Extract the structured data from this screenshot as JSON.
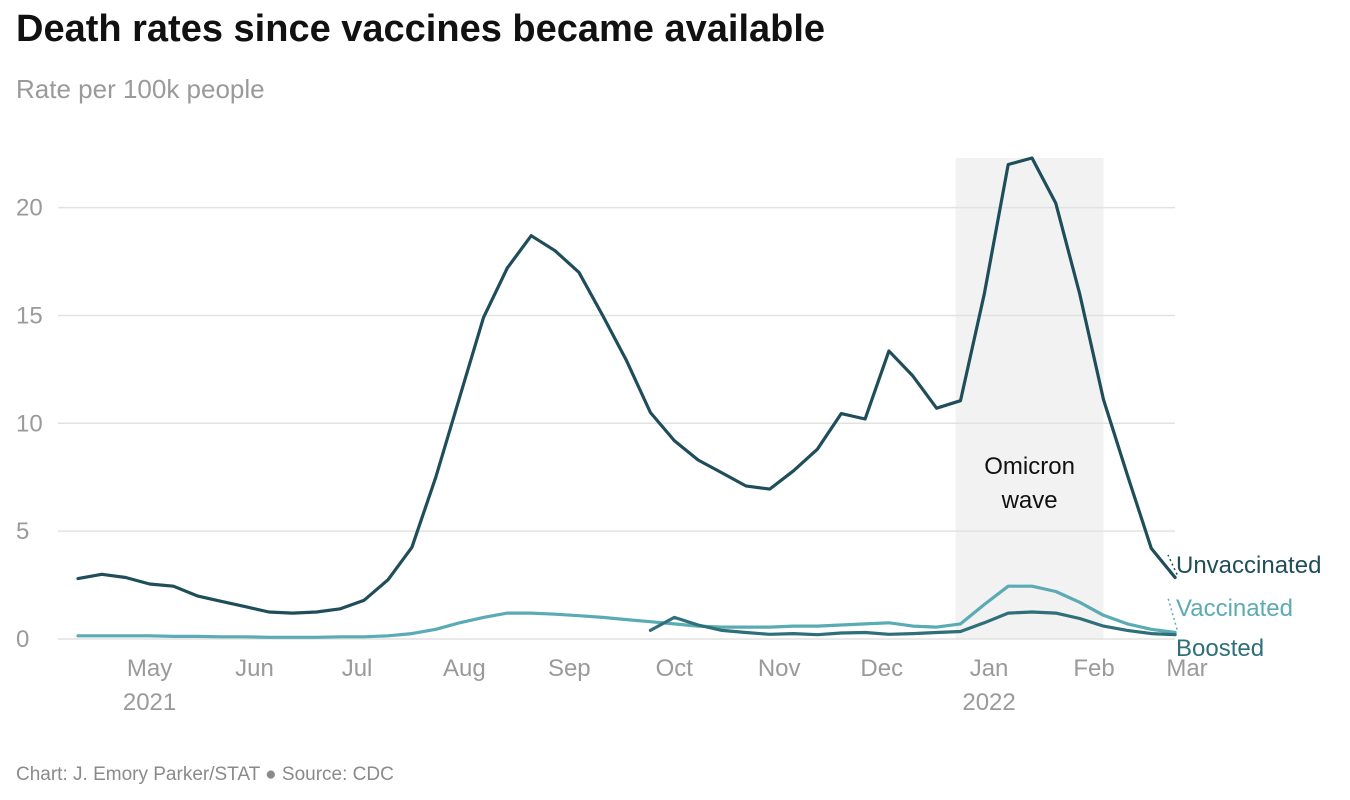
{
  "header": {
    "title": "Death rates since vaccines became available",
    "subtitle": "Rate per 100k people"
  },
  "footer": {
    "credit": "Chart: J. Emory Parker/STAT ● Source: CDC"
  },
  "colors": {
    "unvaccinated": "#1f4e5a",
    "vaccinated": "#5aabb3",
    "boosted": "#2e6f79",
    "omicron_band": "#f2f2f2",
    "grid": "#e2e2e2"
  },
  "chart_data": {
    "type": "line",
    "ylim": [
      0,
      22.3
    ],
    "yticks": [
      0,
      5,
      10,
      15,
      20
    ],
    "xticks": [
      {
        "label": "May",
        "sub": "2021",
        "week": 3
      },
      {
        "label": "Jun",
        "sub": "",
        "week": 7.4
      },
      {
        "label": "Jul",
        "sub": "",
        "week": 11.7
      },
      {
        "label": "Aug",
        "sub": "",
        "week": 16.2
      },
      {
        "label": "Sep",
        "sub": "",
        "week": 20.6
      },
      {
        "label": "Oct",
        "sub": "",
        "week": 25
      },
      {
        "label": "Nov",
        "sub": "",
        "week": 29.4
      },
      {
        "label": "Dec",
        "sub": "",
        "week": 33.7
      },
      {
        "label": "Jan",
        "sub": "2022",
        "week": 38.2
      },
      {
        "label": "Feb",
        "sub": "",
        "week": 42.6
      },
      {
        "label": "Mar",
        "sub": "",
        "week": 46.5
      }
    ],
    "shaded_region": {
      "label_line1": "Omicron",
      "label_line2": "wave",
      "x_start": 36.8,
      "x_end": 43.0
    },
    "series": [
      {
        "name": "Unvaccinated",
        "x": [
          0,
          1,
          2,
          3,
          4,
          5,
          6,
          7,
          8,
          9,
          10,
          11,
          12,
          13,
          14,
          15,
          16,
          17,
          18,
          19,
          20,
          21,
          22,
          23,
          24,
          25,
          26,
          27,
          28,
          29,
          30,
          31,
          32,
          33,
          34,
          35,
          36,
          37,
          38,
          39,
          40,
          41,
          42,
          43,
          44,
          45,
          46
        ],
        "values": [
          2.8,
          3.0,
          2.85,
          2.55,
          2.45,
          2.0,
          1.75,
          1.5,
          1.25,
          1.2,
          1.25,
          1.4,
          1.8,
          2.75,
          4.25,
          7.5,
          11.2,
          14.9,
          17.2,
          18.7,
          18.0,
          17.0,
          15.0,
          12.9,
          10.5,
          9.2,
          8.3,
          7.7,
          7.1,
          6.95,
          7.8,
          8.8,
          10.45,
          10.2,
          13.35,
          12.2,
          10.7,
          11.05,
          16.0,
          22.0,
          22.3,
          20.2,
          16.0,
          11.1,
          7.6,
          4.2,
          2.85
        ]
      },
      {
        "name": "Vaccinated",
        "x": [
          0,
          1,
          2,
          3,
          4,
          5,
          6,
          7,
          8,
          9,
          10,
          11,
          12,
          13,
          14,
          15,
          16,
          17,
          18,
          19,
          20,
          21,
          22,
          23,
          24,
          25,
          26,
          27,
          28,
          29,
          30,
          31,
          32,
          33,
          34,
          35,
          36,
          37,
          38,
          39,
          40,
          41,
          42,
          43,
          44,
          45,
          46
        ],
        "values": [
          0.15,
          0.15,
          0.15,
          0.15,
          0.12,
          0.12,
          0.1,
          0.1,
          0.08,
          0.08,
          0.08,
          0.1,
          0.1,
          0.15,
          0.25,
          0.45,
          0.75,
          1.0,
          1.2,
          1.2,
          1.15,
          1.08,
          1.0,
          0.9,
          0.8,
          0.7,
          0.6,
          0.55,
          0.55,
          0.55,
          0.6,
          0.6,
          0.65,
          0.7,
          0.75,
          0.6,
          0.55,
          0.7,
          1.6,
          2.45,
          2.45,
          2.2,
          1.7,
          1.1,
          0.7,
          0.45,
          0.3
        ]
      },
      {
        "name": "Boosted",
        "x": [
          24,
          25,
          26,
          27,
          28,
          29,
          30,
          31,
          32,
          33,
          34,
          35,
          36,
          37,
          38,
          39,
          40,
          41,
          42,
          43,
          44,
          45,
          46
        ],
        "values": [
          0.4,
          1.0,
          0.65,
          0.4,
          0.3,
          0.22,
          0.25,
          0.2,
          0.28,
          0.3,
          0.22,
          0.25,
          0.3,
          0.35,
          0.75,
          1.2,
          1.25,
          1.2,
          0.95,
          0.6,
          0.4,
          0.25,
          0.2
        ]
      }
    ]
  }
}
